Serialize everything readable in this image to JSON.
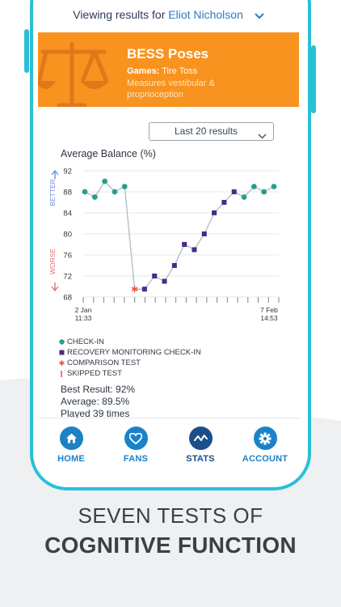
{
  "header": {
    "viewing_prefix": "Viewing results for",
    "user_name": "Eliot Nicholson"
  },
  "banner": {
    "title": "BESS Poses",
    "games_label": "Games:",
    "games_value": "Tire Toss",
    "description": "Measures vestibular & proprioception",
    "color": "#f7931e"
  },
  "filter": {
    "selected": "Last 20 results"
  },
  "chart_data": {
    "type": "line",
    "title": "Average Balance (%)",
    "ylim": [
      68,
      92
    ],
    "yticks": [
      68,
      72,
      76,
      80,
      84,
      88,
      92
    ],
    "better_label": "BETTER",
    "worse_label": "WORSE",
    "x_start_label": [
      "2 Jan",
      "11:33"
    ],
    "x_end_label": [
      "7 Feb",
      "14:53"
    ],
    "points": [
      {
        "type": "checkin",
        "value": 88
      },
      {
        "type": "checkin",
        "value": 87
      },
      {
        "type": "checkin",
        "value": 90
      },
      {
        "type": "checkin",
        "value": 88
      },
      {
        "type": "checkin",
        "value": 89
      },
      {
        "type": "comparison",
        "value": 69.5
      },
      {
        "type": "recovery",
        "value": 69.5
      },
      {
        "type": "recovery",
        "value": 72
      },
      {
        "type": "recovery",
        "value": 71
      },
      {
        "type": "recovery",
        "value": 74
      },
      {
        "type": "recovery",
        "value": 78
      },
      {
        "type": "recovery",
        "value": 77
      },
      {
        "type": "recovery",
        "value": 80
      },
      {
        "type": "recovery",
        "value": 84
      },
      {
        "type": "recovery",
        "value": 86
      },
      {
        "type": "recovery",
        "value": 88
      },
      {
        "type": "checkin",
        "value": 87
      },
      {
        "type": "checkin",
        "value": 89
      },
      {
        "type": "checkin",
        "value": 88
      },
      {
        "type": "checkin",
        "value": 89
      }
    ],
    "colors": {
      "checkin": "#2a9d8f",
      "recovery": "#4b2a8a",
      "comparison": "#e74c3c",
      "skipped": "#e74c3c",
      "line": "#b8bec5",
      "better": "#6f8fe0",
      "worse": "#e57373"
    }
  },
  "legend": [
    {
      "key": "checkin",
      "label": "CHECK-IN"
    },
    {
      "key": "recovery",
      "label": "RECOVERY MONITORING CHECK-IN"
    },
    {
      "key": "comparison",
      "label": "COMPARISON TEST"
    },
    {
      "key": "skipped",
      "label": "SKIPPED TEST"
    }
  ],
  "stats": {
    "best": "Best Result: 92%",
    "average": "Average: 89.5%",
    "played": "Played 39 times"
  },
  "tabs": [
    {
      "label": "HOME",
      "icon": "home-icon",
      "active": false
    },
    {
      "label": "FANS",
      "icon": "heart-icon",
      "active": false
    },
    {
      "label": "STATS",
      "icon": "stats-icon",
      "active": true
    },
    {
      "label": "ACCOUNT",
      "icon": "gear-icon",
      "active": false
    }
  ],
  "tab_colors": {
    "default": "#1b82c8",
    "active": "#1a4f8a"
  },
  "caption": {
    "line1": "SEVEN TESTS OF",
    "line2": "COGNITIVE FUNCTION"
  }
}
